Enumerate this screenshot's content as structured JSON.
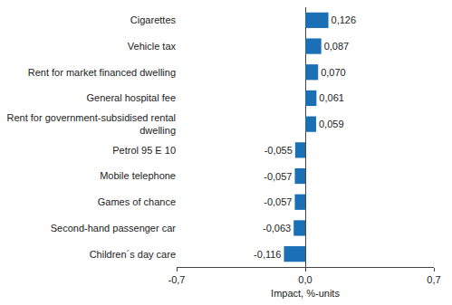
{
  "chart_data": {
    "type": "bar",
    "orientation": "horizontal",
    "categories": [
      "Cigarettes",
      "Vehicle tax",
      "Rent for market financed dwelling",
      "General hospital fee",
      "Rent for government-subsidised rental dwelling",
      "Petrol 95 E 10",
      "Mobile telephone",
      "Games of chance",
      "Second-hand passenger car",
      "Children´s day care"
    ],
    "values": [
      0.126,
      0.087,
      0.07,
      0.061,
      0.059,
      -0.055,
      -0.057,
      -0.057,
      -0.063,
      -0.116
    ],
    "value_labels": [
      "0,126",
      "0,087",
      "0,070",
      "0,061",
      "0,059",
      "-0,055",
      "-0,057",
      "-0,057",
      "-0,063",
      "-0,116"
    ],
    "data_labels": true,
    "color": "#1a6fb5",
    "x_label": "Impact, %-units",
    "xlim": [
      -0.7,
      0.7
    ],
    "xticks": [
      {
        "value": -0.7,
        "label": "-0,7"
      },
      {
        "value": 0,
        "label": "0,0"
      },
      {
        "value": 0.7,
        "label": "0,7"
      }
    ],
    "grid": true
  }
}
